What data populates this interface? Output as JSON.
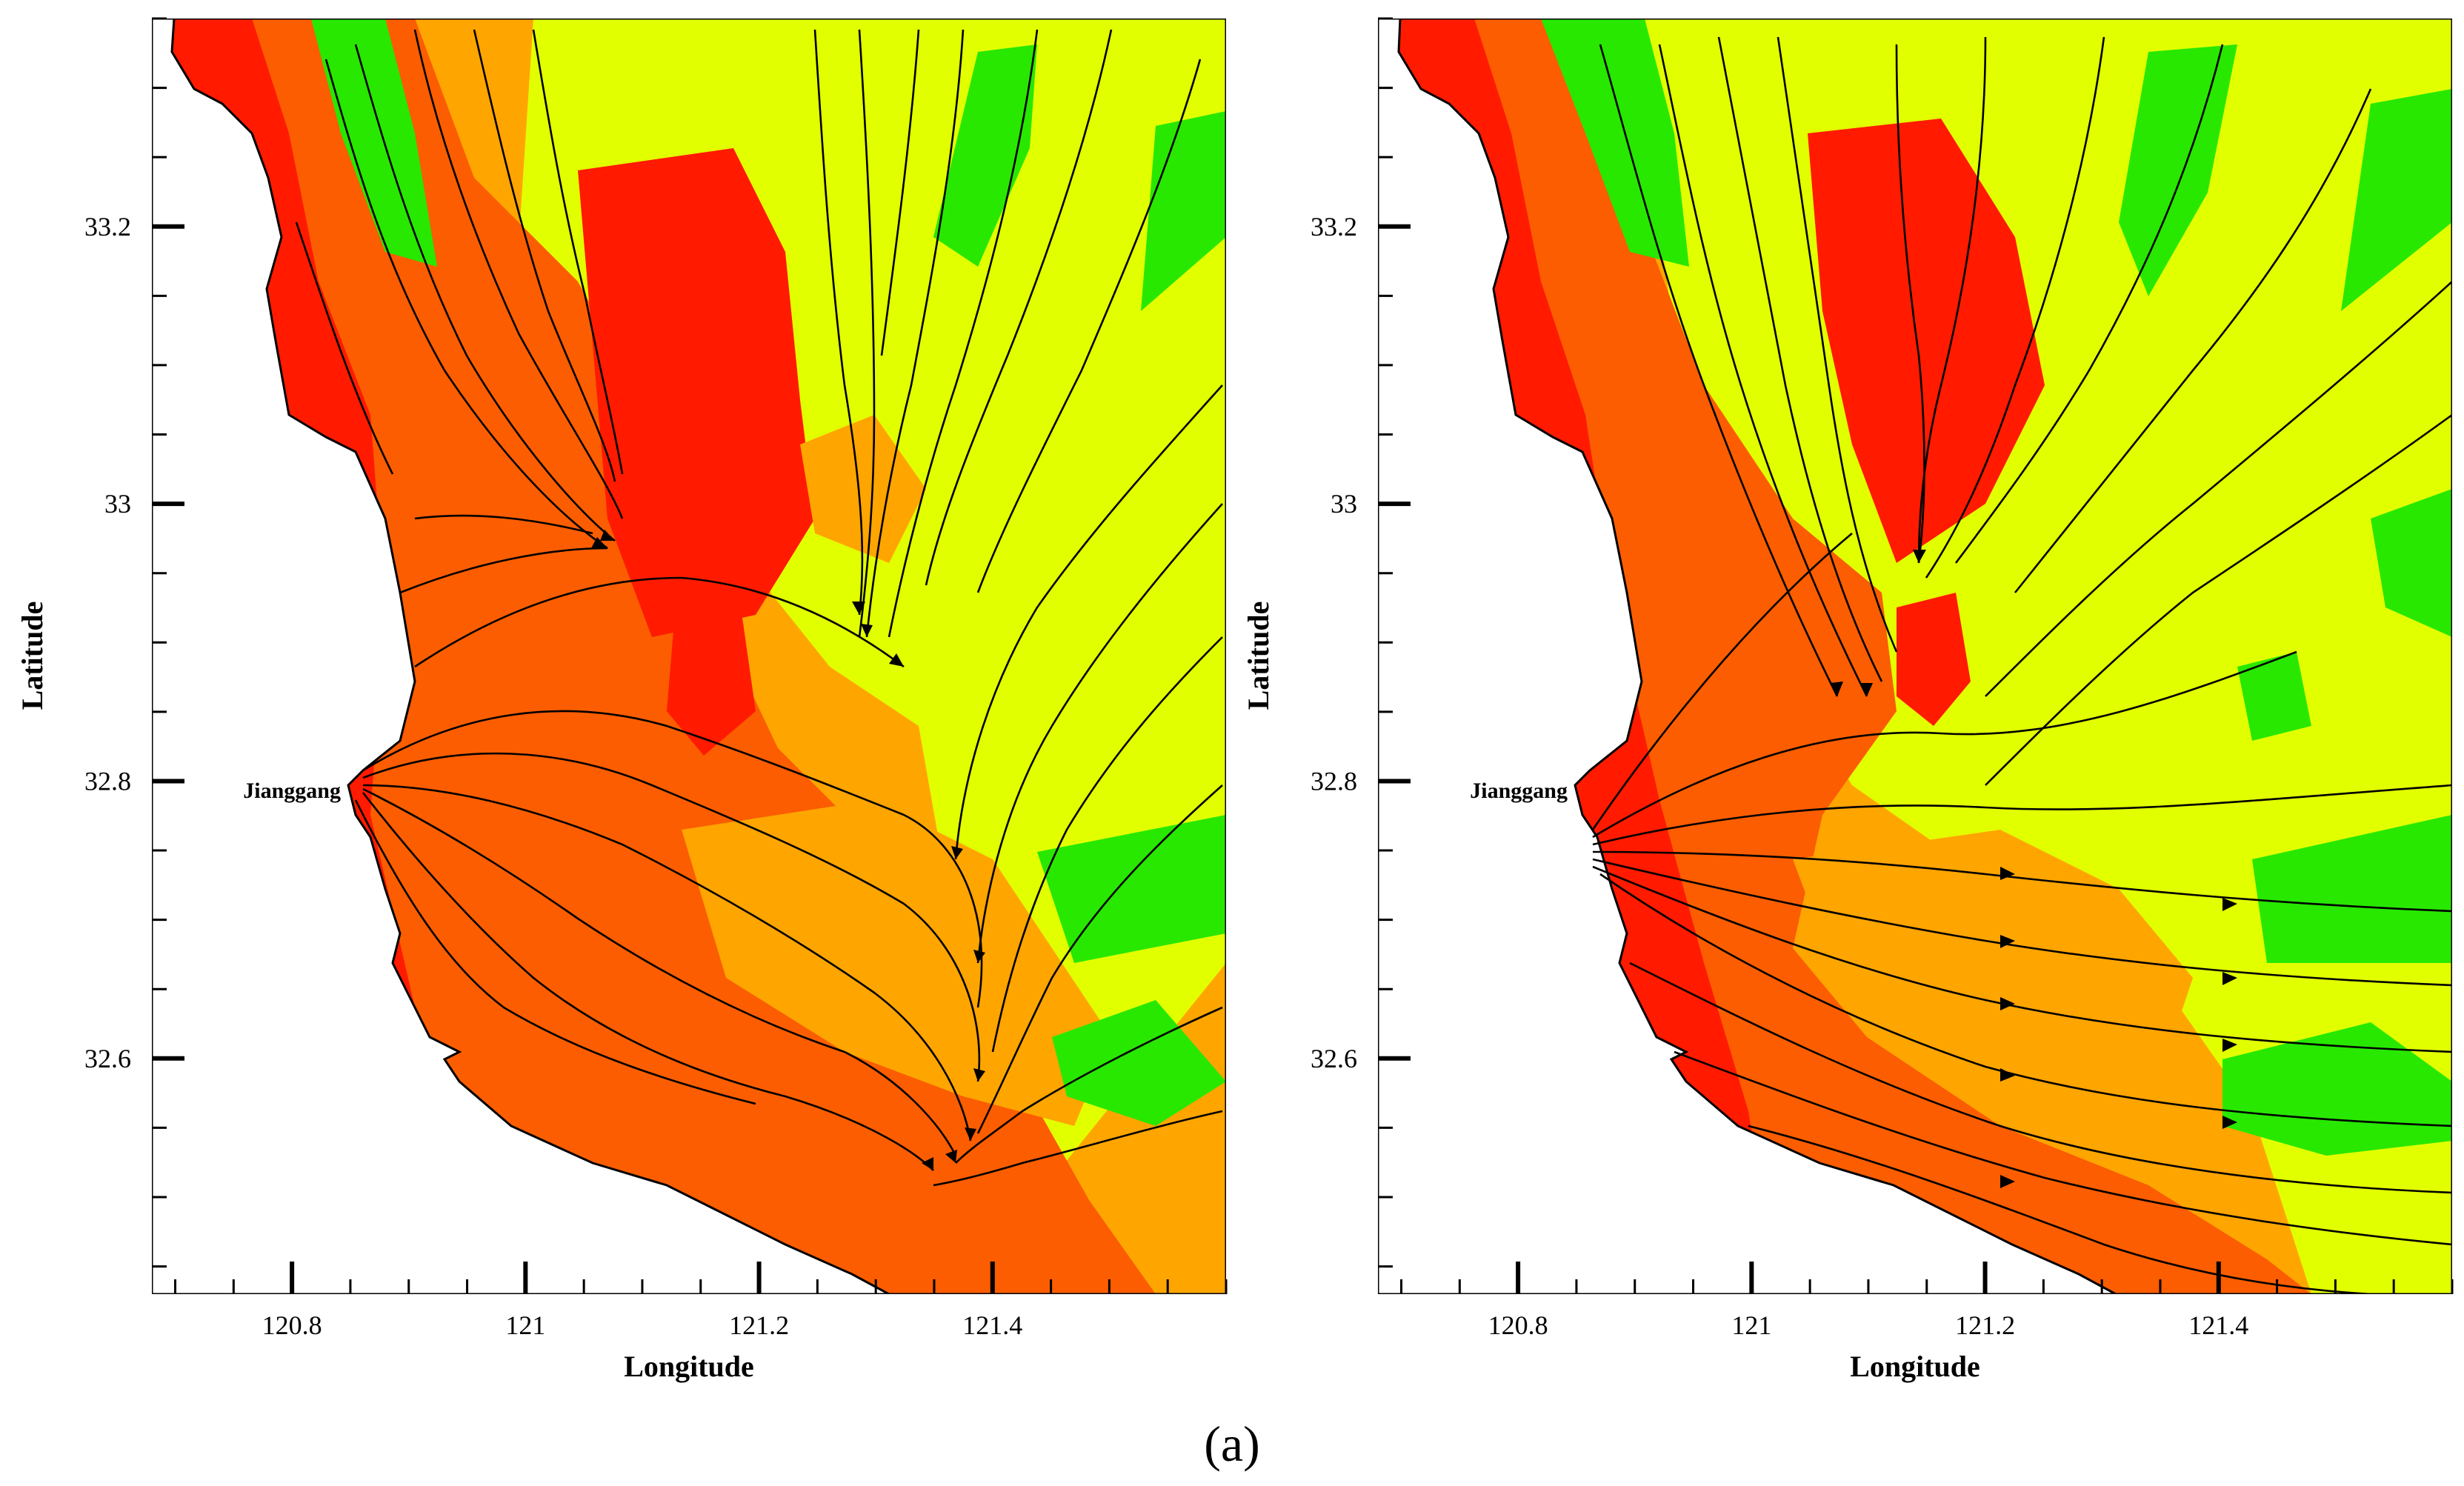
{
  "figure": {
    "caption": "(a)",
    "colors": {
      "red": "#ff1a00",
      "dark_orange": "#fb5d00",
      "orange": "#ffa500",
      "yellow_green": "#e2ff00",
      "green": "#28e800",
      "land": "#ffffff",
      "streamline": "#000000"
    }
  },
  "panels": [
    {
      "id": "left",
      "xlabel": "Longitude",
      "ylabel": "Latitude",
      "xlim": [
        120.68,
        121.6
      ],
      "ylim": [
        32.43,
        33.35
      ],
      "x_ticks": [
        120.8,
        121,
        121.2,
        121.4
      ],
      "x_tick_labels": [
        "120.8",
        "121",
        "121.2",
        "121.4"
      ],
      "y_ticks": [
        32.6,
        32.8,
        33,
        33.2
      ],
      "y_tick_labels": [
        "32.6",
        "32.8",
        "33",
        "33.2"
      ],
      "place_label": "Jianggang",
      "place_location": [
        120.855,
        32.78
      ]
    },
    {
      "id": "right",
      "xlabel": "Longitude",
      "ylabel": "Latitude",
      "xlim": [
        120.68,
        121.6
      ],
      "ylim": [
        32.43,
        33.35
      ],
      "x_ticks": [
        120.8,
        121,
        121.2,
        121.4
      ],
      "x_tick_labels": [
        "120.8",
        "121",
        "121.2",
        "121.4"
      ],
      "y_ticks": [
        32.6,
        32.8,
        33,
        33.2
      ],
      "y_tick_labels": [
        "32.6",
        "32.8",
        "33",
        "33.2"
      ],
      "place_label": "Jianggang",
      "place_location": [
        120.855,
        32.78
      ]
    }
  ]
}
